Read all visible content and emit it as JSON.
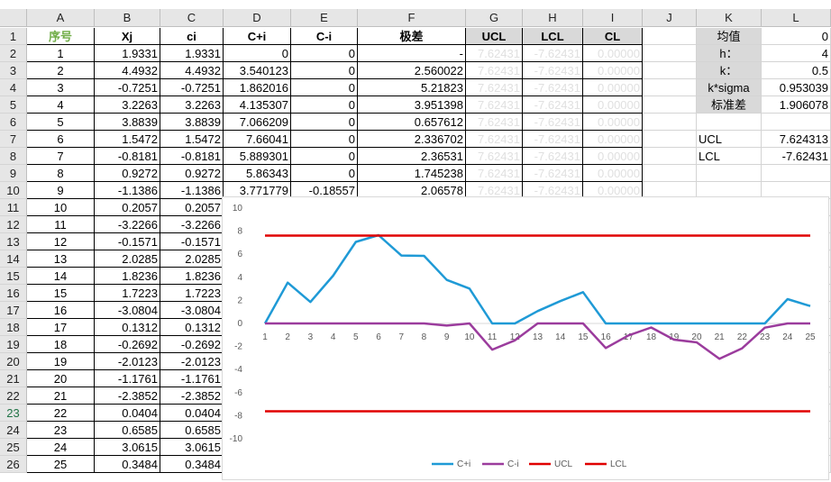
{
  "columns": [
    "A",
    "B",
    "C",
    "D",
    "E",
    "F",
    "G",
    "H",
    "I",
    "J",
    "K",
    "L"
  ],
  "rows": [
    "1",
    "2",
    "3",
    "4",
    "5",
    "6",
    "7",
    "8",
    "9",
    "10",
    "11",
    "12",
    "13",
    "14",
    "15",
    "16",
    "17",
    "18",
    "19",
    "20",
    "21",
    "22",
    "23",
    "24",
    "25",
    "26"
  ],
  "selected_row": "23",
  "header": {
    "A": "序号",
    "B": "Xj",
    "C": "ci",
    "D": "C+i",
    "E": "C-i",
    "F": "极差",
    "G": "UCL",
    "H": "LCL",
    "I": "CL"
  },
  "table": [
    [
      "1",
      "1.9331",
      "1.9331",
      "0",
      "0",
      "-",
      "7.62431",
      "-7.62431",
      "0.00000"
    ],
    [
      "2",
      "4.4932",
      "4.4932",
      "3.540123",
      "0",
      "2.560022",
      "7.62431",
      "-7.62431",
      "0.00000"
    ],
    [
      "3",
      "-0.7251",
      "-0.7251",
      "1.862016",
      "0",
      "5.21823",
      "7.62431",
      "-7.62431",
      "0.00000"
    ],
    [
      "4",
      "3.2263",
      "3.2263",
      "4.135307",
      "0",
      "3.951398",
      "7.62431",
      "-7.62431",
      "0.00000"
    ],
    [
      "5",
      "3.8839",
      "3.8839",
      "7.066209",
      "0",
      "0.657612",
      "7.62431",
      "-7.62431",
      "0.00000"
    ],
    [
      "6",
      "1.5472",
      "1.5472",
      "7.66041",
      "0",
      "2.336702",
      "7.62431",
      "-7.62431",
      "0.00000"
    ],
    [
      "7",
      "-0.8181",
      "-0.8181",
      "5.889301",
      "0",
      "2.36531",
      "7.62431",
      "-7.62431",
      "0.00000"
    ],
    [
      "8",
      "0.9272",
      "0.9272",
      "5.86343",
      "0",
      "1.745238",
      "7.62431",
      "-7.62431",
      "0.00000"
    ],
    [
      "9",
      "-1.1386",
      "-1.1386",
      "3.771779",
      "-0.18557",
      "2.06578",
      "7.62431",
      "-7.62431",
      "0.00000"
    ],
    [
      "10",
      "0.2057",
      "0.2057"
    ],
    [
      "11",
      "-3.2266",
      "-3.2266"
    ],
    [
      "12",
      "-0.1571",
      "-0.1571"
    ],
    [
      "13",
      "2.0285",
      "2.0285"
    ],
    [
      "14",
      "1.8236",
      "1.8236"
    ],
    [
      "15",
      "1.7223",
      "1.7223"
    ],
    [
      "16",
      "-3.0804",
      "-3.0804"
    ],
    [
      "17",
      "0.1312",
      "0.1312"
    ],
    [
      "18",
      "-0.2692",
      "-0.2692"
    ],
    [
      "19",
      "-2.0123",
      "-2.0123"
    ],
    [
      "20",
      "-1.1761",
      "-1.1761"
    ],
    [
      "21",
      "-2.3852",
      "-2.3852"
    ],
    [
      "22",
      "0.0404",
      "0.0404"
    ],
    [
      "23",
      "0.6585",
      "0.6585"
    ],
    [
      "24",
      "3.0615",
      "3.0615"
    ],
    [
      "25",
      "0.3484",
      "0.3484"
    ]
  ],
  "params": [
    {
      "label": "均值",
      "value": "0"
    },
    {
      "label": "h：",
      "value": "4"
    },
    {
      "label": "k：",
      "value": "0.5"
    },
    {
      "label": "k*sigma",
      "value": "0.953039"
    },
    {
      "label": "标准差",
      "value": "1.906078"
    }
  ],
  "limits": [
    {
      "label": "UCL",
      "value": "7.624313"
    },
    {
      "label": "LCL",
      "value": "-7.62431"
    }
  ],
  "chart_data": {
    "type": "line",
    "x": [
      1,
      2,
      3,
      4,
      5,
      6,
      7,
      8,
      9,
      10,
      11,
      12,
      13,
      14,
      15,
      16,
      17,
      18,
      19,
      20,
      21,
      22,
      23,
      24,
      25
    ],
    "series": [
      {
        "name": "C+i",
        "color": "#1f9ad6",
        "values": [
          0,
          3.54,
          1.86,
          4.14,
          7.07,
          7.66,
          5.89,
          5.86,
          3.77,
          3.02,
          0,
          0,
          1.07,
          1.94,
          2.71,
          0,
          0,
          0,
          0,
          0,
          0,
          0,
          0,
          2.11,
          1.51
        ]
      },
      {
        "name": "C-i",
        "color": "#9b3c9d",
        "values": [
          0,
          0,
          0,
          0,
          0,
          0,
          0,
          0,
          -0.19,
          0,
          -2.27,
          -1.47,
          0,
          0,
          0,
          -2.13,
          -1.04,
          -0.35,
          -1.41,
          -1.64,
          -3.07,
          -2.16,
          -0.37,
          0,
          0
        ]
      },
      {
        "name": "UCL",
        "color": "#e00000",
        "values": [
          7.62,
          7.62,
          7.62,
          7.62,
          7.62,
          7.62,
          7.62,
          7.62,
          7.62,
          7.62,
          7.62,
          7.62,
          7.62,
          7.62,
          7.62,
          7.62,
          7.62,
          7.62,
          7.62,
          7.62,
          7.62,
          7.62,
          7.62,
          7.62,
          7.62
        ]
      },
      {
        "name": "LCL",
        "color": "#e00000",
        "values": [
          -7.62,
          -7.62,
          -7.62,
          -7.62,
          -7.62,
          -7.62,
          -7.62,
          -7.62,
          -7.62,
          -7.62,
          -7.62,
          -7.62,
          -7.62,
          -7.62,
          -7.62,
          -7.62,
          -7.62,
          -7.62,
          -7.62,
          -7.62,
          -7.62,
          -7.62,
          -7.62,
          -7.62,
          -7.62
        ]
      }
    ],
    "ylim": [
      -10,
      10
    ],
    "yticks": [
      "10",
      "8",
      "6",
      "4",
      "2",
      "0",
      "-2",
      "-4",
      "-6",
      "-8",
      "-10"
    ],
    "xticks": [
      "1",
      "2",
      "3",
      "4",
      "5",
      "6",
      "7",
      "8",
      "9",
      "10",
      "11",
      "12",
      "13",
      "14",
      "15",
      "16",
      "17",
      "18",
      "19",
      "20",
      "21",
      "22",
      "23",
      "24",
      "25"
    ],
    "legend": [
      "C+i",
      "C-i",
      "UCL",
      "LCL"
    ],
    "legend_position": "bottom",
    "grid": false
  }
}
